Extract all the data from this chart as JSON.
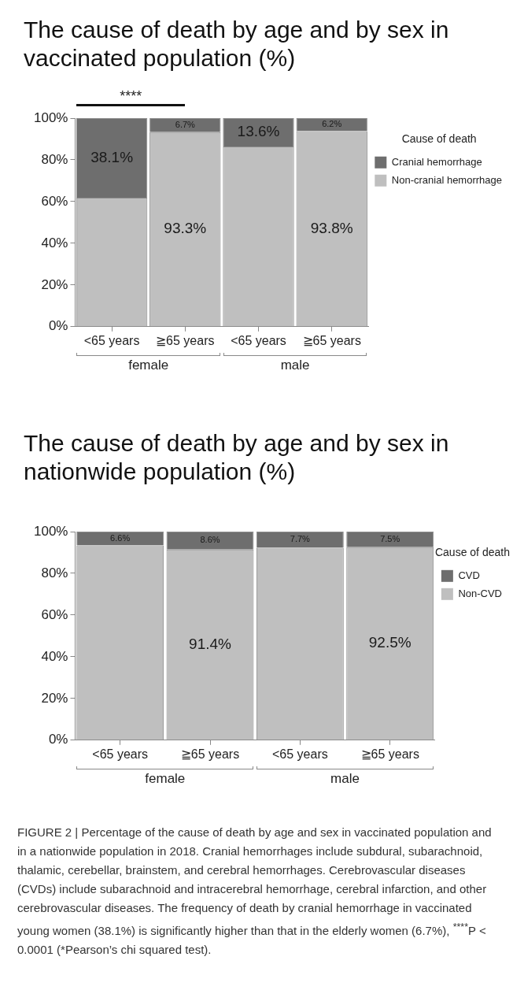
{
  "chart_data": [
    {
      "type": "bar",
      "stacked": true,
      "title": "The cause of death by age and by sex in vaccinated population (%)",
      "categories": [
        "<65 years",
        "≧65 years",
        "<65 years",
        "≧65 years"
      ],
      "series": [
        {
          "name": "Non-cranial hemorrhage",
          "color": "#bfbfbf",
          "values": [
            61.9,
            93.3,
            86.4,
            93.8
          ],
          "value_labels": [
            null,
            "93.3%",
            null,
            "93.8%"
          ]
        },
        {
          "name": "Cranial hemorrhage",
          "color": "#6e6e6e",
          "values": [
            38.1,
            6.7,
            13.6,
            6.2
          ],
          "value_labels": [
            "38.1%",
            "6.7%",
            "13.6%",
            "6.2%"
          ]
        }
      ],
      "ylim": [
        0,
        100
      ],
      "yticks": [
        {
          "value": 0,
          "label": "0%"
        },
        {
          "value": 20,
          "label": "20%"
        },
        {
          "value": 40,
          "label": "40%"
        },
        {
          "value": 60,
          "label": "60%"
        },
        {
          "value": 80,
          "label": "80%"
        },
        {
          "value": 100,
          "label": "100%"
        }
      ],
      "legend": "right",
      "legend_title": "Cause of death",
      "grid": false,
      "annotations": [
        "****",
        "female",
        "male"
      ]
    },
    {
      "type": "bar",
      "stacked": true,
      "title": "The cause of death by age and by sex in nationwide population (%)",
      "categories": [
        "<65 years",
        "≧65 years",
        "<65 years",
        "≧65 years"
      ],
      "series": [
        {
          "name": "Non-CVD",
          "color": "#bfbfbf",
          "values": [
            93.4,
            91.4,
            92.3,
            92.5
          ],
          "value_labels": [
            null,
            "91.4%",
            null,
            "92.5%"
          ]
        },
        {
          "name": "CVD",
          "color": "#6e6e6e",
          "values": [
            6.6,
            8.6,
            7.7,
            7.5
          ],
          "value_labels": [
            "6.6%",
            "8.6%",
            "7.7%",
            "7.5%"
          ]
        }
      ],
      "ylim": [
        0,
        100
      ],
      "yticks": [
        {
          "value": 0,
          "label": "0%"
        },
        {
          "value": 20,
          "label": "20%"
        },
        {
          "value": 40,
          "label": "40%"
        },
        {
          "value": 60,
          "label": "60%"
        },
        {
          "value": 80,
          "label": "80%"
        },
        {
          "value": 100,
          "label": "100%"
        }
      ],
      "legend": "right",
      "legend_title": "Cause of death",
      "grid": false,
      "annotations": [
        "female",
        "male",
        "FIGURE 2 | Percentage of the cause of death by age and sex in vaccinated population and in a nationwide population in 2018. Cranial hemorrhages include subdural, subarachnoid, thalamic, cerebellar, brainstem, and cerebral hemorrhages. Cerebrovascular diseases (CVDs) include subarachnoid and intracerebral hemorrhage, cerebral infarction, and other cerebrovascular diseases. The frequency of death by cranial hemorrhage in vaccinated young women (38.1%) is significantly higher than that in the elderly women (6.7%), $^{****}$P < 0.0001 (*Pearson’s chi squared test)."
      ]
    }
  ]
}
